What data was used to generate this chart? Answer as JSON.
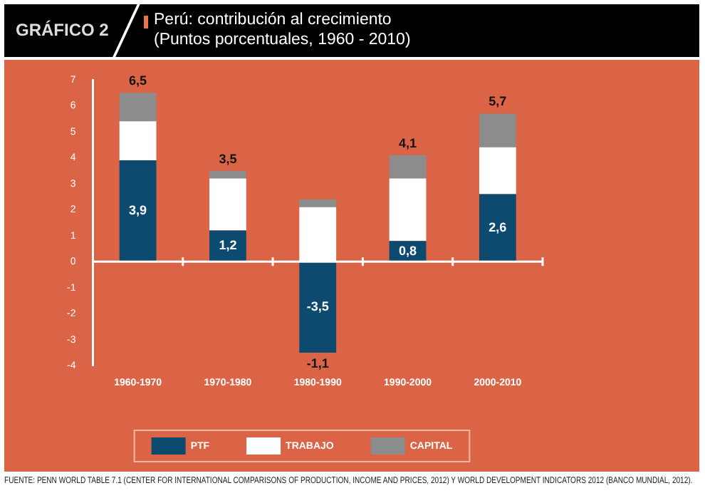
{
  "chart_data": {
    "type": "bar",
    "title": "Perú: contribución al crecimiento",
    "subtitle": "(Puntos porcentuales, 1960 - 2010)",
    "annotations": [
      "GRÁFICO 2",
      "FUENTE: PENN WORLD TABLE 7.1 (CENTER FOR INTERNATIONAL COMPARISONS OF PRODUCTION, INCOME AND PRICES, 2012) Y WORLD DEVELOPMENT INDICATORS 2012 (BANCO MUNDIAL, 2012)."
    ],
    "categories": [
      "1960-1970",
      "1970-1980",
      "1980-1990",
      "1990-2000",
      "2000-2010"
    ],
    "series": [
      {
        "name": "PTF",
        "color": "#0d4a70",
        "values": [
          3.9,
          1.2,
          -3.5,
          0.8,
          2.6
        ],
        "value_labels": [
          "3,9",
          "1,2",
          "-3,5",
          "0,8",
          "2,6"
        ]
      },
      {
        "name": "TRABAJO",
        "color": "#ffffff",
        "values": [
          1.5,
          2.0,
          2.1,
          2.4,
          1.8
        ]
      },
      {
        "name": "CAPITAL",
        "color": "#8c8c8c",
        "values": [
          1.1,
          0.3,
          0.3,
          0.9,
          1.3
        ]
      }
    ],
    "totals": [
      "6,5",
      "3,5",
      "-1,1",
      "4,1",
      "5,7"
    ],
    "ref_lines": [
      {
        "axis": "y",
        "value": 0,
        "color": "#ffffff"
      }
    ],
    "stacked": true,
    "ylim": [
      -4,
      7
    ],
    "yticks": [
      -4,
      -3,
      -2,
      -1,
      0,
      1,
      2,
      3,
      4,
      5,
      6,
      7
    ],
    "grid": false,
    "legend": "bottom"
  }
}
